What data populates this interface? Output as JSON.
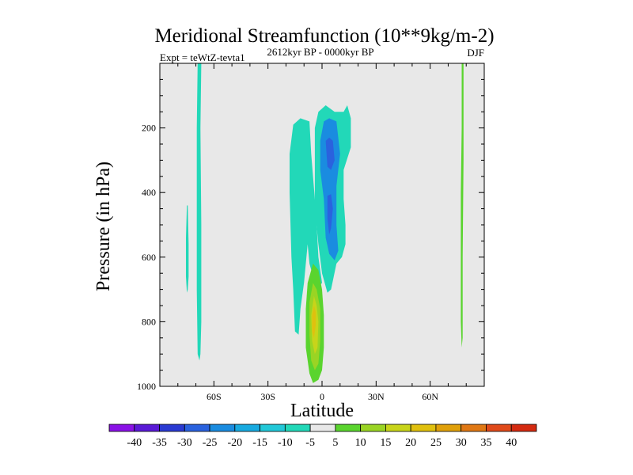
{
  "chart_data": {
    "type": "contour",
    "title": "Meridional Streamfunction (10**9kg/m-2)",
    "left_string": "Expt = teWtZ-tevta1",
    "center_string": "2612kyr BP - 0000kyr BP",
    "right_string": "DJF",
    "xlabel": "Latitude",
    "ylabel": "Pressure (in hPa)",
    "xlim": [
      -90,
      90
    ],
    "ylim": [
      1000,
      0
    ],
    "x_ticks": [
      {
        "value": -60,
        "label": "60S"
      },
      {
        "value": -30,
        "label": "30S"
      },
      {
        "value": 0,
        "label": "0"
      },
      {
        "value": 30,
        "label": "30N"
      },
      {
        "value": 60,
        "label": "60N"
      }
    ],
    "y_ticks": [
      {
        "value": 200,
        "label": "200"
      },
      {
        "value": 400,
        "label": "400"
      },
      {
        "value": 600,
        "label": "600"
      },
      {
        "value": 800,
        "label": "800"
      },
      {
        "value": 1000,
        "label": "1000"
      }
    ],
    "background_color": "#e8e8e8",
    "colorbar": {
      "levels": [
        "-40",
        "-35",
        "-30",
        "-25",
        "-20",
        "-15",
        "-10",
        "-5",
        "5",
        "10",
        "15",
        "20",
        "25",
        "30",
        "35",
        "40"
      ],
      "colors": [
        "#8a12e6",
        "#5a1ad6",
        "#2a3ad2",
        "#2a62de",
        "#1a8ce0",
        "#18aae0",
        "#22c8d8",
        "#22d8b8",
        "#e8e8e8",
        "#5ad42e",
        "#9ad424",
        "#c8d41a",
        "#e0c00e",
        "#e0a00a",
        "#e07814",
        "#e04a1a",
        "#d42a10"
      ]
    },
    "contour_regions": [
      {
        "level": "-5 to 5",
        "color": "#22d8b8",
        "points": [
          [
            -69,
            0
          ],
          [
            -67,
            0
          ],
          [
            -67.5,
            200
          ],
          [
            -67,
            500
          ],
          [
            -67,
            800
          ],
          [
            -67.5,
            900
          ],
          [
            -68,
            920
          ],
          [
            -69,
            900
          ],
          [
            -69.5,
            700
          ],
          [
            -69.5,
            400
          ],
          [
            -69.5,
            200
          ]
        ]
      },
      {
        "level": "-5 to 5",
        "color": "#22d8b8",
        "points": [
          [
            -75,
            440
          ],
          [
            -74.5,
            440
          ],
          [
            -74,
            560
          ],
          [
            -74,
            660
          ],
          [
            -74.5,
            700
          ],
          [
            -75,
            710
          ],
          [
            -75.5,
            660
          ],
          [
            -75.5,
            540
          ]
        ]
      },
      {
        "level": "-5 to 5",
        "color": "#22d8b8",
        "points": [
          [
            -16,
            190
          ],
          [
            -12,
            170
          ],
          [
            -7,
            180
          ],
          [
            -6,
            280
          ],
          [
            -4,
            420
          ],
          [
            -3,
            500
          ],
          [
            -2,
            600
          ],
          [
            0,
            680
          ],
          [
            -3,
            700
          ],
          [
            -7,
            620
          ],
          [
            -8,
            560
          ],
          [
            -10,
            680
          ],
          [
            -12,
            760
          ],
          [
            -13,
            840
          ],
          [
            -15,
            830
          ],
          [
            -16,
            700
          ],
          [
            -17,
            600
          ],
          [
            -18,
            400
          ],
          [
            -18,
            280
          ]
        ]
      },
      {
        "level": "-5 to 5",
        "color": "#22d8b8",
        "points": [
          [
            -2,
            150
          ],
          [
            2,
            130
          ],
          [
            7,
            150
          ],
          [
            12,
            150
          ],
          [
            14,
            130
          ],
          [
            16,
            170
          ],
          [
            16,
            260
          ],
          [
            12,
            330
          ],
          [
            12,
            420
          ],
          [
            13,
            500
          ],
          [
            13,
            560
          ],
          [
            11,
            600
          ],
          [
            8,
            620
          ],
          [
            5,
            700
          ],
          [
            3,
            710
          ],
          [
            0,
            650
          ],
          [
            -2,
            560
          ],
          [
            -4,
            450
          ],
          [
            -4,
            300
          ],
          [
            -4,
            200
          ]
        ]
      },
      {
        "level": "-10 to -5",
        "color": "#1a8ce0",
        "points": [
          [
            1,
            180
          ],
          [
            4,
            170
          ],
          [
            8,
            180
          ],
          [
            10,
            280
          ],
          [
            8,
            380
          ],
          [
            8,
            500
          ],
          [
            9,
            580
          ],
          [
            7,
            610
          ],
          [
            4,
            590
          ],
          [
            2,
            540
          ],
          [
            1,
            420
          ],
          [
            -1,
            330
          ],
          [
            -1,
            240
          ]
        ]
      },
      {
        "level": "-15 to -10",
        "color": "#2a62de",
        "points": [
          [
            2,
            240
          ],
          [
            4,
            230
          ],
          [
            6,
            240
          ],
          [
            7,
            300
          ],
          [
            5,
            330
          ],
          [
            3,
            320
          ]
        ]
      },
      {
        "level": "-15 to -10",
        "color": "#2a62de",
        "points": [
          [
            3,
            410
          ],
          [
            5,
            405
          ],
          [
            6,
            450
          ],
          [
            5,
            510
          ],
          [
            4,
            530
          ],
          [
            3,
            480
          ]
        ]
      },
      {
        "level": "5 to 10",
        "color": "#5ad42e",
        "points": [
          [
            -5,
            620
          ],
          [
            -2,
            640
          ],
          [
            0,
            700
          ],
          [
            1,
            780
          ],
          [
            1,
            880
          ],
          [
            0,
            950
          ],
          [
            -2,
            980
          ],
          [
            -5,
            990
          ],
          [
            -7,
            960
          ],
          [
            -9,
            880
          ],
          [
            -9,
            760
          ],
          [
            -8,
            680
          ]
        ]
      },
      {
        "level": "10 to 15",
        "color": "#9ad424",
        "points": [
          [
            -5,
            680
          ],
          [
            -3,
            700
          ],
          [
            -1,
            760
          ],
          [
            -1,
            860
          ],
          [
            -2,
            930
          ],
          [
            -4,
            950
          ],
          [
            -6,
            920
          ],
          [
            -7,
            840
          ],
          [
            -7,
            740
          ]
        ]
      },
      {
        "level": "15 to 20",
        "color": "#c8d41a",
        "points": [
          [
            -4.5,
            720
          ],
          [
            -3,
            750
          ],
          [
            -2,
            800
          ],
          [
            -2.5,
            880
          ],
          [
            -4,
            900
          ],
          [
            -5.5,
            860
          ],
          [
            -6,
            780
          ]
        ]
      },
      {
        "level": "20 to 25",
        "color": "#e0c00e",
        "points": [
          [
            -4.5,
            750
          ],
          [
            -3.5,
            770
          ],
          [
            -3.5,
            810
          ],
          [
            -4.5,
            850
          ],
          [
            -5.5,
            830
          ],
          [
            -5.5,
            780
          ]
        ]
      },
      {
        "level": "5 to 10",
        "color": "#5ad42e",
        "points": [
          [
            77.5,
            0
          ],
          [
            78.5,
            0
          ],
          [
            78.5,
            300
          ],
          [
            78,
            600
          ],
          [
            78,
            850
          ],
          [
            77.5,
            880
          ],
          [
            77,
            800
          ],
          [
            77,
            400
          ],
          [
            77.5,
            200
          ]
        ]
      }
    ]
  }
}
